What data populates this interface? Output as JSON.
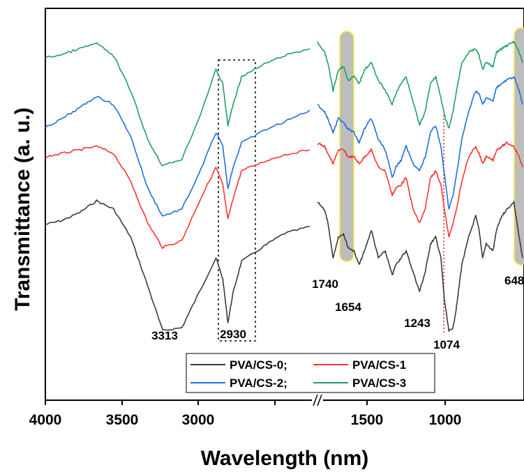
{
  "chart_data": {
    "type": "line",
    "title": "",
    "xlabel": "Wavelength (nm)",
    "ylabel": "Transmittance (a. u.)",
    "x_axis_break": true,
    "x_ticks": [
      "4000",
      "3500",
      "3000",
      "1500",
      "1000"
    ],
    "xlim_left": [
      4000,
      2450
    ],
    "xlim_right": [
      1830,
      650
    ],
    "legend": {
      "position": "bottom-center",
      "entries": [
        "PVA/CS-0;",
        "PVA/CS-1",
        "PVA/CS-2;",
        "PVA/CS-3"
      ]
    },
    "series": [
      {
        "name": "PVA/CS-0;",
        "color": "#3a3a3a",
        "left": [
          [
            4000,
            322
          ],
          [
            3900,
            316
          ],
          [
            3800,
            305
          ],
          [
            3700,
            288
          ],
          [
            3600,
            300
          ],
          [
            3500,
            340
          ],
          [
            3400,
            410
          ],
          [
            3313,
            474
          ],
          [
            3200,
            470
          ],
          [
            3100,
            420
          ],
          [
            3000,
            370
          ],
          [
            2960,
            400
          ],
          [
            2930,
            463
          ],
          [
            2900,
            420
          ],
          [
            2850,
            375
          ],
          [
            2700,
            350
          ],
          [
            2600,
            335
          ],
          [
            2450,
            325
          ]
        ],
        "right": [
          [
            1830,
            290
          ],
          [
            1790,
            300
          ],
          [
            1770,
            320
          ],
          [
            1740,
            370
          ],
          [
            1710,
            340
          ],
          [
            1680,
            335
          ],
          [
            1654,
            355
          ],
          [
            1620,
            360
          ],
          [
            1590,
            380
          ],
          [
            1560,
            360
          ],
          [
            1520,
            330
          ],
          [
            1480,
            370
          ],
          [
            1440,
            360
          ],
          [
            1400,
            395
          ],
          [
            1380,
            380
          ],
          [
            1350,
            370
          ],
          [
            1320,
            360
          ],
          [
            1280,
            390
          ],
          [
            1243,
            418
          ],
          [
            1210,
            390
          ],
          [
            1180,
            350
          ],
          [
            1150,
            340
          ],
          [
            1120,
            370
          ],
          [
            1100,
            430
          ],
          [
            1074,
            475
          ],
          [
            1050,
            470
          ],
          [
            1030,
            440
          ],
          [
            1000,
            380
          ],
          [
            960,
            340
          ],
          [
            920,
            310
          ],
          [
            900,
            330
          ],
          [
            880,
            370
          ],
          [
            860,
            350
          ],
          [
            820,
            360
          ],
          [
            800,
            330
          ],
          [
            770,
            310
          ],
          [
            740,
            300
          ],
          [
            700,
            290
          ],
          [
            670,
            340
          ],
          [
            650,
            370
          ]
        ]
      },
      {
        "name": "PVA/CS-1",
        "color": "#ff3333",
        "left": [
          [
            4000,
            225
          ],
          [
            3900,
            220
          ],
          [
            3800,
            215
          ],
          [
            3700,
            210
          ],
          [
            3600,
            220
          ],
          [
            3500,
            260
          ],
          [
            3400,
            320
          ],
          [
            3313,
            355
          ],
          [
            3200,
            345
          ],
          [
            3100,
            290
          ],
          [
            3000,
            240
          ],
          [
            2960,
            265
          ],
          [
            2930,
            315
          ],
          [
            2900,
            285
          ],
          [
            2850,
            245
          ],
          [
            2700,
            230
          ],
          [
            2600,
            222
          ],
          [
            2450,
            215
          ]
        ],
        "right": [
          [
            1830,
            205
          ],
          [
            1790,
            210
          ],
          [
            1770,
            220
          ],
          [
            1740,
            235
          ],
          [
            1710,
            215
          ],
          [
            1680,
            215
          ],
          [
            1654,
            225
          ],
          [
            1620,
            225
          ],
          [
            1590,
            235
          ],
          [
            1560,
            225
          ],
          [
            1520,
            215
          ],
          [
            1480,
            240
          ],
          [
            1440,
            245
          ],
          [
            1400,
            280
          ],
          [
            1380,
            270
          ],
          [
            1350,
            265
          ],
          [
            1320,
            255
          ],
          [
            1280,
            300
          ],
          [
            1243,
            320
          ],
          [
            1210,
            300
          ],
          [
            1180,
            255
          ],
          [
            1150,
            245
          ],
          [
            1120,
            265
          ],
          [
            1100,
            300
          ],
          [
            1074,
            340
          ],
          [
            1050,
            320
          ],
          [
            1030,
            300
          ],
          [
            1000,
            260
          ],
          [
            960,
            225
          ],
          [
            920,
            210
          ],
          [
            900,
            220
          ],
          [
            880,
            235
          ],
          [
            860,
            225
          ],
          [
            820,
            230
          ],
          [
            800,
            215
          ],
          [
            770,
            210
          ],
          [
            740,
            205
          ],
          [
            700,
            210
          ],
          [
            670,
            225
          ],
          [
            650,
            240
          ]
        ]
      },
      {
        "name": "PVA/CS-2;",
        "color": "#1f6fdc",
        "left": [
          [
            4000,
            183
          ],
          [
            3900,
            170
          ],
          [
            3800,
            155
          ],
          [
            3700,
            138
          ],
          [
            3600,
            150
          ],
          [
            3500,
            195
          ],
          [
            3400,
            270
          ],
          [
            3313,
            310
          ],
          [
            3200,
            300
          ],
          [
            3100,
            250
          ],
          [
            3000,
            190
          ],
          [
            2960,
            210
          ],
          [
            2930,
            270
          ],
          [
            2900,
            240
          ],
          [
            2850,
            205
          ],
          [
            2700,
            185
          ],
          [
            2600,
            175
          ],
          [
            2450,
            158
          ]
        ],
        "right": [
          [
            1830,
            150
          ],
          [
            1790,
            160
          ],
          [
            1770,
            170
          ],
          [
            1740,
            190
          ],
          [
            1710,
            170
          ],
          [
            1680,
            175
          ],
          [
            1654,
            185
          ],
          [
            1620,
            190
          ],
          [
            1590,
            205
          ],
          [
            1560,
            185
          ],
          [
            1520,
            170
          ],
          [
            1480,
            200
          ],
          [
            1440,
            215
          ],
          [
            1400,
            255
          ],
          [
            1380,
            240
          ],
          [
            1350,
            230
          ],
          [
            1320,
            210
          ],
          [
            1280,
            235
          ],
          [
            1243,
            245
          ],
          [
            1210,
            225
          ],
          [
            1180,
            190
          ],
          [
            1150,
            180
          ],
          [
            1120,
            210
          ],
          [
            1100,
            250
          ],
          [
            1074,
            300
          ],
          [
            1050,
            280
          ],
          [
            1030,
            250
          ],
          [
            1000,
            200
          ],
          [
            960,
            160
          ],
          [
            920,
            130
          ],
          [
            900,
            135
          ],
          [
            880,
            150
          ],
          [
            860,
            140
          ],
          [
            820,
            145
          ],
          [
            800,
            125
          ],
          [
            770,
            120
          ],
          [
            740,
            115
          ],
          [
            700,
            110
          ],
          [
            670,
            130
          ],
          [
            650,
            150
          ]
        ]
      },
      {
        "name": "PVA/CS-3",
        "color": "#20a060",
        "left": [
          [
            4000,
            83
          ],
          [
            3900,
            78
          ],
          [
            3800,
            70
          ],
          [
            3700,
            62
          ],
          [
            3600,
            80
          ],
          [
            3500,
            130
          ],
          [
            3400,
            200
          ],
          [
            3313,
            238
          ],
          [
            3200,
            228
          ],
          [
            3100,
            170
          ],
          [
            3000,
            100
          ],
          [
            2960,
            120
          ],
          [
            2930,
            180
          ],
          [
            2900,
            150
          ],
          [
            2850,
            110
          ],
          [
            2700,
            90
          ],
          [
            2600,
            80
          ],
          [
            2450,
            70
          ]
        ],
        "right": [
          [
            1830,
            60
          ],
          [
            1790,
            75
          ],
          [
            1770,
            90
          ],
          [
            1740,
            130
          ],
          [
            1710,
            100
          ],
          [
            1680,
            95
          ],
          [
            1654,
            115
          ],
          [
            1620,
            110
          ],
          [
            1590,
            120
          ],
          [
            1560,
            100
          ],
          [
            1520,
            90
          ],
          [
            1480,
            115
          ],
          [
            1440,
            130
          ],
          [
            1400,
            150
          ],
          [
            1380,
            135
          ],
          [
            1350,
            120
          ],
          [
            1320,
            110
          ],
          [
            1280,
            145
          ],
          [
            1243,
            180
          ],
          [
            1210,
            160
          ],
          [
            1180,
            120
          ],
          [
            1150,
            110
          ],
          [
            1120,
            140
          ],
          [
            1100,
            165
          ],
          [
            1074,
            185
          ],
          [
            1050,
            160
          ],
          [
            1030,
            130
          ],
          [
            1000,
            90
          ],
          [
            960,
            75
          ],
          [
            920,
            70
          ],
          [
            900,
            80
          ],
          [
            880,
            100
          ],
          [
            860,
            90
          ],
          [
            820,
            95
          ],
          [
            800,
            75
          ],
          [
            770,
            70
          ],
          [
            740,
            65
          ],
          [
            700,
            60
          ],
          [
            670,
            75
          ],
          [
            650,
            90
          ]
        ]
      }
    ],
    "annotations": [
      "3313",
      "2930",
      "1740",
      "1654",
      "1243",
      "1074",
      "648"
    ]
  }
}
